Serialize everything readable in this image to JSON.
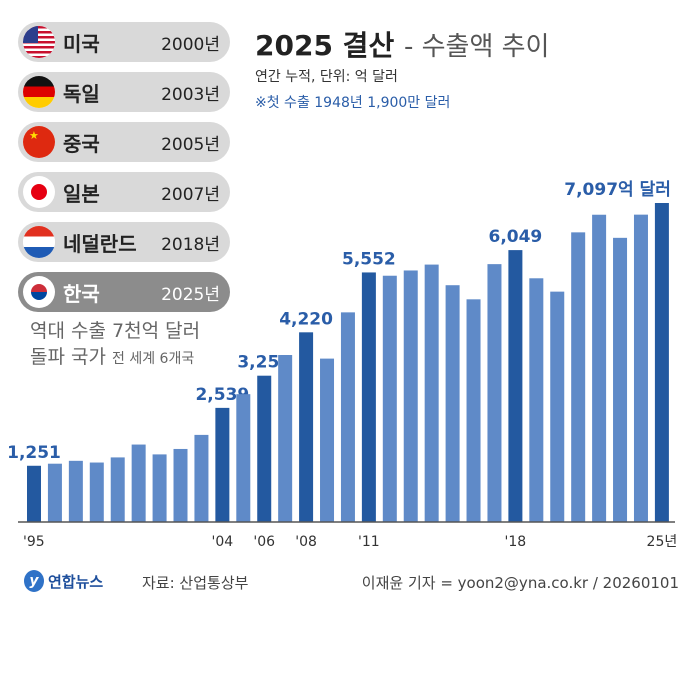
{
  "legend": [
    {
      "country": "미국",
      "year": "2000년",
      "flag": "us-flag"
    },
    {
      "country": "독일",
      "year": "2003년",
      "flag": "germany-flag"
    },
    {
      "country": "중국",
      "year": "2005년",
      "flag": "china-flag"
    },
    {
      "country": "일본",
      "year": "2007년",
      "flag": "japan-flag"
    },
    {
      "country": "네덜란드",
      "year": "2018년",
      "flag": "netherlands-flag"
    },
    {
      "country": "한국",
      "year": "2025년",
      "flag": "korea-flag"
    }
  ],
  "description": {
    "line1": "역대 수출 7천억 달러",
    "line2": "돌파 국가",
    "line2_small": "전 세계 6개국"
  },
  "footer": {
    "logo": "연합뉴스",
    "source": "자료: 산업통상부",
    "credit": "이재윤 기자 = yoon2@yna.co.kr / 20260101"
  },
  "colors": {
    "highlight": "#2359a0",
    "bar": "#5f8ac8",
    "label": "#2a5da8"
  },
  "chart_data": {
    "type": "bar",
    "title": "2025 결산",
    "subtitle": "- 수출액 추이",
    "unit_note": "연간 누적, 단위: 억 달러",
    "annotation": "※첫 수출 1948년 1,900만 달러",
    "categories": [
      1995,
      1996,
      1997,
      1998,
      1999,
      2000,
      2001,
      2002,
      2003,
      2004,
      2005,
      2006,
      2007,
      2008,
      2009,
      2010,
      2011,
      2012,
      2013,
      2014,
      2015,
      2016,
      2017,
      2018,
      2019,
      2020,
      2021,
      2022,
      2023,
      2024,
      2025
    ],
    "values": [
      1251,
      1297,
      1361,
      1323,
      1437,
      1723,
      1504,
      1625,
      1938,
      2539,
      2844,
      3255,
      3715,
      4220,
      3635,
      4664,
      5552,
      5479,
      5596,
      5727,
      5268,
      4954,
      5737,
      6049,
      5422,
      5125,
      6444,
      6836,
      6322,
      6838,
      7097
    ],
    "highlighted": [
      1995,
      2004,
      2006,
      2008,
      2011,
      2018,
      2025
    ],
    "data_labels": {
      "1995": "1,251",
      "2004": "2,539",
      "2006": "3,255",
      "2008": "4,220",
      "2011": "5,552",
      "2018": "6,049",
      "2025": "7,097억 달러"
    },
    "x_ticks": {
      "1995": "'95",
      "2004": "'04",
      "2006": "'06",
      "2008": "'08",
      "2011": "'11",
      "2018": "'18",
      "2025": "25년"
    },
    "ylim": [
      0,
      7097
    ]
  }
}
